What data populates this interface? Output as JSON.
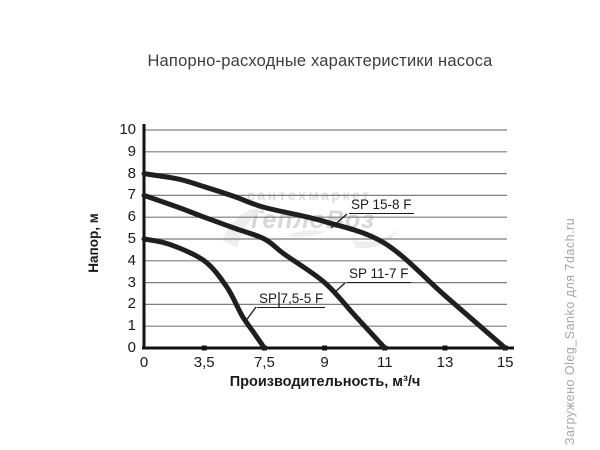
{
  "title": "Напорно-расходные характеристики насоса",
  "watermark": {
    "line1": "сантехмаркет",
    "line2": "ТеплоВоз"
  },
  "credit": "Загружено Oleg_Sanko для 7dach.ru",
  "chart_data": {
    "type": "line",
    "title": "Напорно-расходные характеристики насоса",
    "xlabel": "Производительность, м³/ч",
    "ylabel": "Напор, м",
    "x_ticks": [
      0,
      3.5,
      7.5,
      9,
      11,
      13,
      15
    ],
    "x_tick_labels": [
      "0",
      "3,5",
      "7,5",
      "9",
      "11",
      "13",
      "15"
    ],
    "y_ticks": [
      0,
      1,
      2,
      3,
      4,
      5,
      6,
      7,
      8,
      9,
      10
    ],
    "ylim": [
      0,
      10
    ],
    "xlim": [
      0,
      15
    ],
    "grid": true,
    "legend_position": "inline-callouts",
    "series": [
      {
        "name": "SP 15-8 F",
        "points": [
          [
            0,
            8
          ],
          [
            2,
            7.75
          ],
          [
            3.5,
            7.4
          ],
          [
            5.5,
            6.95
          ],
          [
            7.5,
            6.45
          ],
          [
            9,
            5.8
          ],
          [
            11,
            4.8
          ],
          [
            13,
            2.4
          ],
          [
            15,
            0
          ]
        ]
      },
      {
        "name": "SP 11-7 F",
        "points": [
          [
            0,
            7
          ],
          [
            2,
            6.45
          ],
          [
            3.5,
            6.0
          ],
          [
            5.5,
            5.5
          ],
          [
            7.5,
            5.0
          ],
          [
            8,
            4.3
          ],
          [
            9,
            3.0
          ],
          [
            10,
            1.5
          ],
          [
            11,
            0
          ]
        ]
      },
      {
        "name": "SP 7,5-5 F",
        "points": [
          [
            0,
            5
          ],
          [
            1.5,
            4.75
          ],
          [
            3.5,
            4.0
          ],
          [
            5,
            2.8
          ],
          [
            6,
            1.5
          ],
          [
            6.8,
            0.7
          ],
          [
            7.5,
            0
          ]
        ]
      }
    ],
    "colors": {
      "curve": "#1f1f1f",
      "grid": "#7d7d7d",
      "axis": "#111111"
    }
  }
}
